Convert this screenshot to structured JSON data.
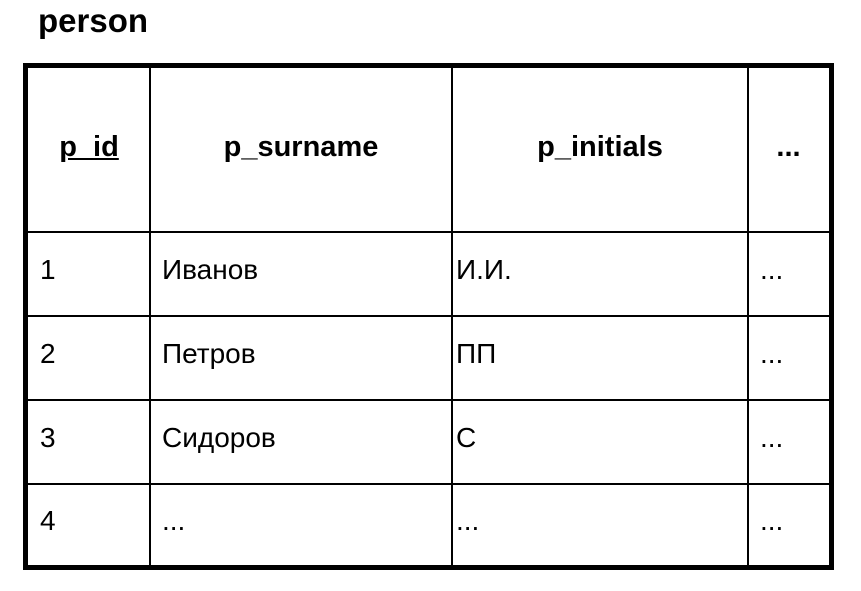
{
  "title": "person",
  "columns": [
    {
      "label": "p_id",
      "primary_key": true
    },
    {
      "label": "p_surname",
      "primary_key": false
    },
    {
      "label": "p_initials",
      "primary_key": false
    },
    {
      "label": "...",
      "primary_key": false
    }
  ],
  "rows": [
    [
      "1",
      "Иванов",
      "И.И.",
      "..."
    ],
    [
      "2",
      "Петров",
      "ПП",
      "..."
    ],
    [
      "3",
      "Сидоров",
      "С",
      "..."
    ],
    [
      "4",
      "...",
      "...",
      "..."
    ]
  ]
}
